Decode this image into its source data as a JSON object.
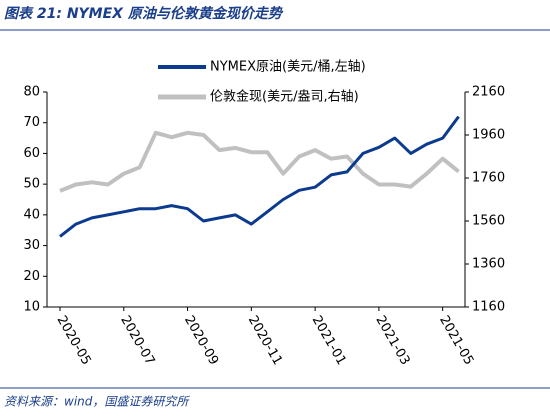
{
  "chart_data": {
    "type": "line",
    "title": "图表 21:  NYMEX 原油与伦敦黄金现价走势",
    "source": "资料来源：wind，国盛证券研究所",
    "categories": [
      "2020-05",
      null,
      null,
      null,
      "2020-07",
      null,
      null,
      null,
      "2020-09",
      null,
      null,
      null,
      "2020-11",
      null,
      null,
      null,
      "2021-01",
      null,
      null,
      null,
      "2021-03",
      null,
      null,
      null,
      "2021-05",
      null
    ],
    "series": [
      {
        "name": "NYMEX原油(美元/桶,左轴)",
        "color": "#0b3a8f",
        "axis": "y",
        "values": [
          33,
          37,
          39,
          40,
          41,
          42,
          42,
          43,
          42,
          38,
          39,
          40,
          37,
          41,
          45,
          48,
          49,
          53,
          54,
          60,
          62,
          65,
          60,
          63,
          65,
          72
        ]
      },
      {
        "name": "伦敦金现(美元/盎司,右轴)",
        "color": "#c0c0c0",
        "axis": "y2",
        "values": [
          1700,
          1730,
          1740,
          1730,
          1780,
          1810,
          1970,
          1950,
          1970,
          1960,
          1890,
          1900,
          1880,
          1880,
          1780,
          1860,
          1890,
          1850,
          1860,
          1780,
          1730,
          1730,
          1720,
          1780,
          1850,
          1790
        ]
      }
    ],
    "ylim": [
      10,
      80
    ],
    "yticks": [
      10,
      20,
      30,
      40,
      50,
      60,
      70,
      80
    ],
    "y2lim": [
      1160,
      2160
    ],
    "y2ticks": [
      1160,
      1360,
      1560,
      1760,
      1960,
      2160
    ],
    "legend": "top"
  }
}
